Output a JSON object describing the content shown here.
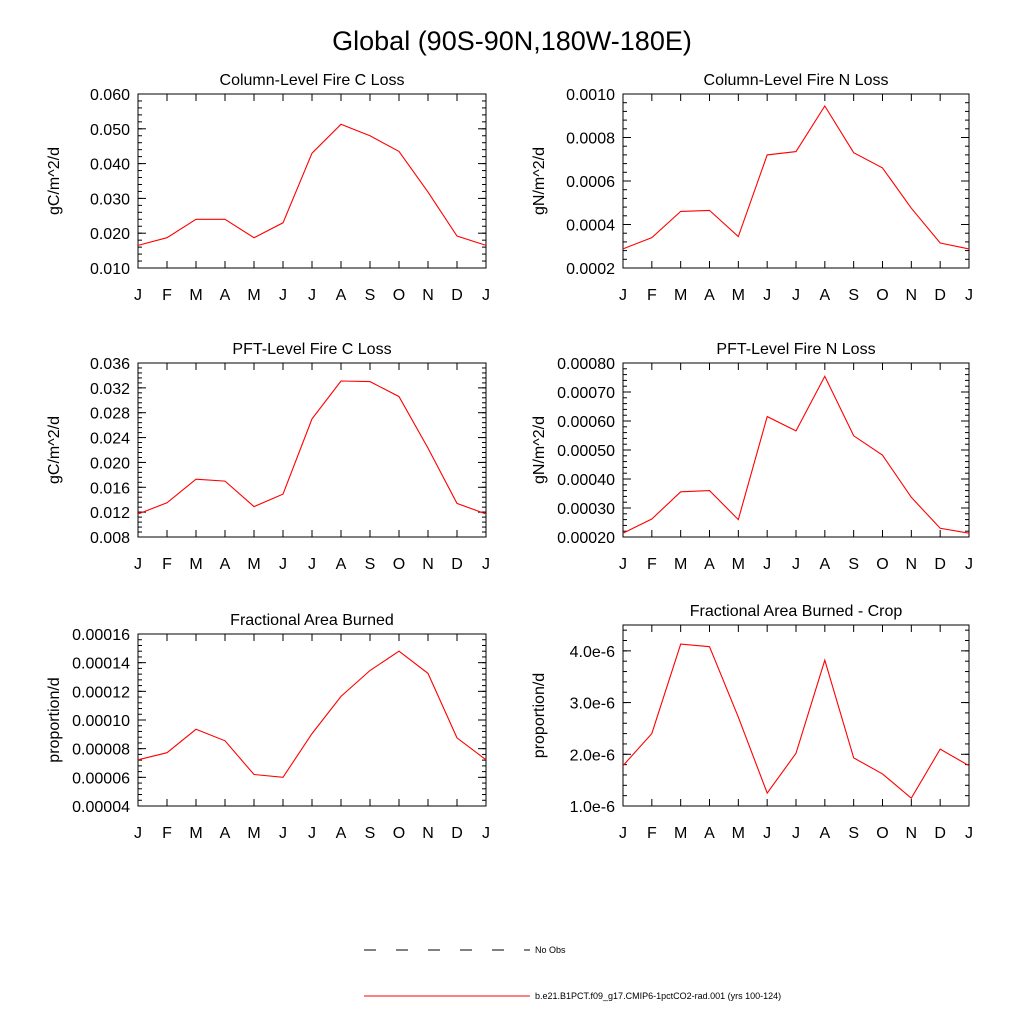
{
  "figure": {
    "title": "Global (90S-90N,180W-180E)",
    "legend": [
      {
        "label": "No Obs",
        "style": "dashed",
        "color": "#000000"
      },
      {
        "label": "b.e21.B1PCT.f09_g17.CMIP6-1pctCO2-rad.001 (yrs 100-124)",
        "style": "solid",
        "color": "#ff0000"
      }
    ]
  },
  "chart_data": [
    {
      "type": "line",
      "title": "Column-Level Fire C Loss",
      "ylabel": "gC/m^2/d",
      "categories": [
        "J",
        "F",
        "M",
        "A",
        "M",
        "J",
        "J",
        "A",
        "S",
        "O",
        "N",
        "D",
        "J"
      ],
      "ylim": [
        0.01,
        0.06
      ],
      "yticks": [
        0.01,
        0.02,
        0.03,
        0.04,
        0.05,
        0.06
      ],
      "ytick_labels": [
        "0.010",
        "0.020",
        "0.030",
        "0.040",
        "0.050",
        "0.060"
      ],
      "series": [
        {
          "color": "#ff0000",
          "values": [
            0.0165,
            0.0187,
            0.024,
            0.024,
            0.0187,
            0.023,
            0.043,
            0.0513,
            0.048,
            0.0435,
            0.0318,
            0.0192,
            0.0165
          ]
        }
      ]
    },
    {
      "type": "line",
      "title": "Column-Level Fire N Loss",
      "ylabel": "gN/m^2/d",
      "categories": [
        "J",
        "F",
        "M",
        "A",
        "M",
        "J",
        "J",
        "A",
        "S",
        "O",
        "N",
        "D",
        "J"
      ],
      "ylim": [
        0.0002,
        0.001
      ],
      "yticks": [
        0.0002,
        0.0004,
        0.0006,
        0.0008,
        0.001
      ],
      "ytick_labels": [
        "0.0002",
        "0.0004",
        "0.0006",
        "0.0008",
        "0.0010"
      ],
      "series": [
        {
          "color": "#ff0000",
          "values": [
            0.000288,
            0.00034,
            0.00046,
            0.000465,
            0.000345,
            0.00072,
            0.000735,
            0.000945,
            0.00073,
            0.00066,
            0.000475,
            0.000315,
            0.000288
          ]
        }
      ]
    },
    {
      "type": "line",
      "title": "PFT-Level Fire C Loss",
      "ylabel": "gC/m^2/d",
      "categories": [
        "J",
        "F",
        "M",
        "A",
        "M",
        "J",
        "J",
        "A",
        "S",
        "O",
        "N",
        "D",
        "J"
      ],
      "ylim": [
        0.008,
        0.036
      ],
      "yticks": [
        0.008,
        0.012,
        0.016,
        0.02,
        0.024,
        0.028,
        0.032,
        0.036
      ],
      "ytick_labels": [
        "0.008",
        "0.012",
        "0.016",
        "0.020",
        "0.024",
        "0.028",
        "0.032",
        "0.036"
      ],
      "series": [
        {
          "color": "#ff0000",
          "values": [
            0.0117,
            0.0135,
            0.0173,
            0.017,
            0.0129,
            0.0149,
            0.027,
            0.0331,
            0.033,
            0.0306,
            0.0223,
            0.0134,
            0.0117
          ]
        }
      ]
    },
    {
      "type": "line",
      "title": "PFT-Level Fire N Loss",
      "ylabel": "gN/m^2/d",
      "categories": [
        "J",
        "F",
        "M",
        "A",
        "M",
        "J",
        "J",
        "A",
        "S",
        "O",
        "N",
        "D",
        "J"
      ],
      "ylim": [
        0.0002,
        0.0008
      ],
      "yticks": [
        0.0002,
        0.0003,
        0.0004,
        0.0005,
        0.0006,
        0.0007,
        0.0008
      ],
      "ytick_labels": [
        "0.00020",
        "0.00030",
        "0.00040",
        "0.00050",
        "0.00060",
        "0.00070",
        "0.00080"
      ],
      "series": [
        {
          "color": "#ff0000",
          "values": [
            0.000213,
            0.000262,
            0.000356,
            0.00036,
            0.00026,
            0.000615,
            0.000566,
            0.000754,
            0.000549,
            0.000482,
            0.000337,
            0.00023,
            0.000213
          ]
        }
      ]
    },
    {
      "type": "line",
      "title": "Fractional Area Burned",
      "ylabel": "proportion/d",
      "categories": [
        "J",
        "F",
        "M",
        "A",
        "M",
        "J",
        "J",
        "A",
        "S",
        "O",
        "N",
        "D",
        "J"
      ],
      "ylim": [
        4e-05,
        0.00016
      ],
      "yticks": [
        4e-05,
        6e-05,
        8e-05,
        0.0001,
        0.00012,
        0.00014,
        0.00016
      ],
      "ytick_labels": [
        "0.00004",
        "0.00006",
        "0.00008",
        "0.00010",
        "0.00012",
        "0.00014",
        "0.00016"
      ],
      "series": [
        {
          "color": "#ff0000",
          "values": [
            7.22e-05,
            7.72e-05,
            9.35e-05,
            8.55e-05,
            6.2e-05,
            6e-05,
            9.05e-05,
            0.0001165,
            0.0001345,
            0.000148,
            0.0001325,
            8.75e-05,
            7.22e-05
          ]
        }
      ]
    },
    {
      "type": "line",
      "title": "Fractional Area Burned - Crop",
      "ylabel": "proportion/d",
      "categories": [
        "J",
        "F",
        "M",
        "A",
        "M",
        "J",
        "J",
        "A",
        "S",
        "O",
        "N",
        "D",
        "J"
      ],
      "ylim": [
        1e-06,
        4.5e-06
      ],
      "yticks": [
        1e-06,
        2e-06,
        3e-06,
        4e-06
      ],
      "ytick_labels": [
        "1.0e-6",
        "2.0e-6",
        "3.0e-6",
        "4.0e-6"
      ],
      "series": [
        {
          "color": "#ff0000",
          "values": [
            1.78e-06,
            2.4e-06,
            4.13e-06,
            4.08e-06,
            2.72e-06,
            1.25e-06,
            2.02e-06,
            3.82e-06,
            1.93e-06,
            1.62e-06,
            1.15e-06,
            2.1e-06,
            1.78e-06
          ]
        }
      ]
    }
  ]
}
